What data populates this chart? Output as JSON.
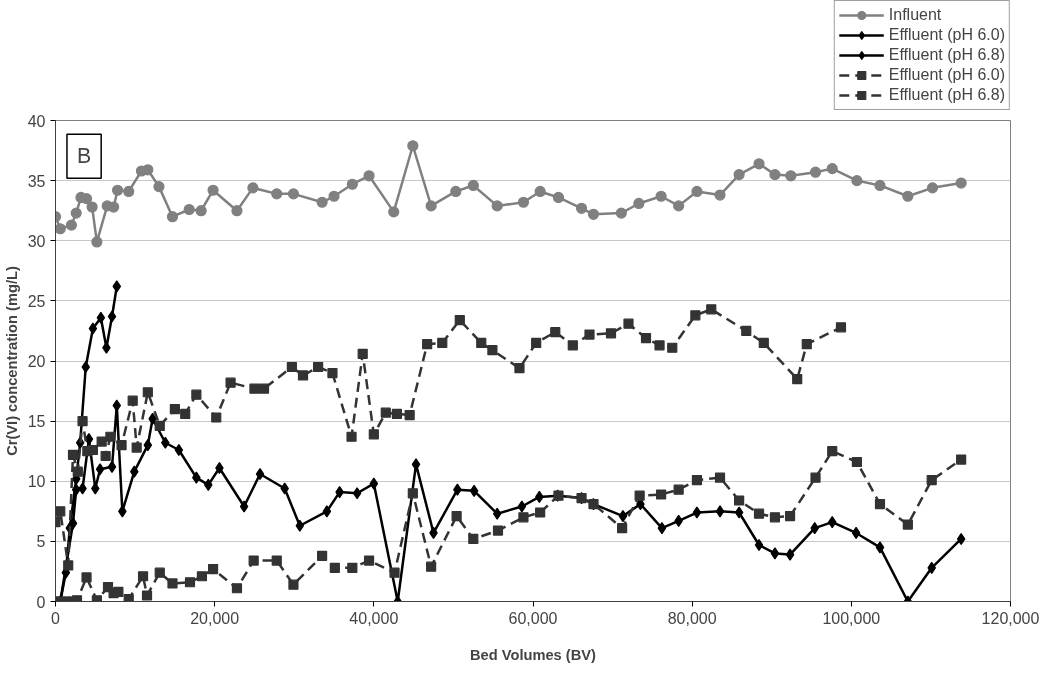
{
  "chart_data": {
    "type": "line",
    "xlabel": "Bed Volumes (BV)",
    "ylabel": "Cr(VI) concentration (mg/L)",
    "annotations": [
      "B"
    ],
    "xlim": [
      0,
      120000
    ],
    "ylim": [
      0,
      40
    ],
    "xticks": [
      {
        "value": 0,
        "label": "0"
      },
      {
        "value": 20000,
        "label": "20,000"
      },
      {
        "value": 40000,
        "label": "40,000"
      },
      {
        "value": 60000,
        "label": "60,000"
      },
      {
        "value": 80000,
        "label": "80,000"
      },
      {
        "value": 100000,
        "label": "100,000"
      },
      {
        "value": 120000,
        "label": "120,000"
      }
    ],
    "yticks": [
      0,
      5,
      10,
      15,
      20,
      25,
      30,
      35,
      40
    ],
    "grid": "y",
    "legend": "top right",
    "series": [
      {
        "name": "Influent",
        "color": "#808080",
        "marker": "circle",
        "line_style": "solid",
        "x": [
          0,
          600,
          2000,
          2600,
          3200,
          3900,
          4600,
          5200,
          6500,
          7300,
          7800,
          9200,
          10800,
          11600,
          13000,
          14700,
          16800,
          18300,
          19800,
          22800,
          24800,
          27800,
          29900,
          33500,
          35000,
          37300,
          39400,
          42500,
          44900,
          47200,
          50300,
          52500,
          55500,
          58800,
          60900,
          63200,
          66100,
          67600,
          71100,
          73300,
          76100,
          78300,
          80600,
          83500,
          85900,
          88400,
          90400,
          92400,
          95500,
          97600,
          100700,
          103600,
          107100,
          110200,
          113800
        ],
        "values": [
          32.0,
          31.0,
          31.3,
          32.3,
          33.6,
          33.5,
          32.8,
          29.9,
          32.9,
          32.8,
          34.2,
          34.1,
          35.8,
          35.9,
          34.5,
          32.0,
          32.6,
          32.5,
          34.2,
          32.5,
          34.4,
          33.9,
          33.9,
          33.2,
          33.7,
          34.7,
          35.4,
          32.4,
          37.9,
          32.9,
          34.1,
          34.6,
          32.9,
          33.2,
          34.1,
          33.6,
          32.7,
          32.2,
          32.3,
          33.1,
          33.7,
          32.9,
          34.1,
          33.8,
          35.5,
          36.4,
          35.5,
          35.4,
          35.7,
          36.0,
          35.0,
          34.6,
          33.7,
          34.4,
          34.8
        ]
      },
      {
        "name": "Effluent (pH 6.0)",
        "color": "#000000",
        "marker": "diamond",
        "line_style": "solid",
        "x": [
          0,
          600,
          2200,
          2600,
          3400,
          4200,
          5000,
          5600,
          7100,
          7700,
          8400,
          9900,
          11600,
          12200,
          13800,
          15500,
          17700,
          19200,
          20600,
          23700,
          25700,
          28800,
          30700,
          34100,
          35700,
          37900,
          40000,
          43000,
          45300,
          47500,
          50500,
          52600,
          55500,
          58600,
          60800,
          63100,
          66100,
          67600,
          71300,
          73500,
          76200,
          78300,
          80600,
          83500,
          85900,
          88400,
          90400,
          92300,
          95400,
          97600,
          100600,
          103600,
          107100,
          110100,
          113800
        ],
        "values": [
          0,
          0,
          6.5,
          9.3,
          9.4,
          13.5,
          9.4,
          11.0,
          11.2,
          16.3,
          7.5,
          10.8,
          13.0,
          15.2,
          13.2,
          12.6,
          10.3,
          9.7,
          11.1,
          7.9,
          10.6,
          9.4,
          6.3,
          7.5,
          9.1,
          9.0,
          9.8,
          0,
          11.4,
          5.7,
          9.3,
          9.2,
          7.3,
          7.9,
          8.7,
          8.8,
          8.6,
          8.1,
          7.1,
          8.1,
          6.1,
          6.7,
          7.4,
          7.5,
          7.4,
          4.7,
          4.0,
          3.9,
          6.1,
          6.6,
          5.7,
          4.5,
          0,
          2.8,
          5.2
        ]
      },
      {
        "name": "Effluent (pH 6.8)",
        "color": "#000000",
        "marker": "diamond",
        "line_style": "solid",
        "x": [
          600,
          1300,
          1800,
          2600,
          3100,
          3800,
          4700,
          5700,
          6400,
          7100,
          7700
        ],
        "values": [
          0,
          2.4,
          6.1,
          10.2,
          13.2,
          19.5,
          22.7,
          23.6,
          21.1,
          23.7,
          26.2
        ]
      },
      {
        "name": "Effluent (pH 6.0)",
        "color": "#333333",
        "marker": "square",
        "line_style": "dashed",
        "x": [
          0,
          700,
          1400,
          2000,
          2700,
          3900,
          5200,
          6600,
          7300,
          7900,
          9200,
          11000,
          11500,
          13100,
          14700,
          16900,
          18400,
          19800,
          22800,
          24900,
          27800,
          29900,
          33500,
          35100,
          37300,
          39400,
          42600,
          44900,
          47200,
          50400,
          52500,
          55600,
          58800,
          60900,
          63200,
          66100,
          67600,
          71200,
          73400,
          76100,
          78300,
          80600,
          83500,
          85900,
          88400,
          90400,
          92300,
          95500,
          97600,
          100700,
          103600,
          107100,
          110100,
          113800
        ],
        "values": [
          0,
          0,
          0,
          0,
          0.1,
          2.0,
          0.1,
          1.2,
          0.7,
          0.8,
          0.2,
          2.1,
          0.5,
          2.4,
          1.5,
          1.6,
          2.1,
          2.7,
          1.1,
          3.4,
          3.4,
          1.4,
          3.8,
          2.8,
          2.8,
          3.4,
          2.4,
          9.0,
          2.9,
          7.1,
          5.2,
          5.9,
          7.0,
          7.4,
          8.8,
          8.6,
          8.1,
          6.1,
          8.8,
          8.9,
          9.3,
          10.1,
          10.3,
          8.4,
          7.3,
          7.0,
          7.1,
          10.3,
          12.5,
          11.6,
          8.1,
          6.4,
          10.1,
          11.8
        ]
      },
      {
        "name": "Effluent (pH 6.8)",
        "color": "#333333",
        "marker": "square",
        "line_style": "dashed",
        "x": [
          0,
          600,
          1600,
          2200,
          2800,
          3400,
          4000,
          4700,
          5800,
          6300,
          6900,
          8300,
          9700,
          10200,
          11600,
          13100,
          15000,
          16300,
          17700,
          20200,
          22000,
          25000,
          26200,
          29700,
          31100,
          33000,
          34800,
          37200,
          38600,
          40000,
          41500,
          42900,
          44500,
          46700,
          48600,
          50800,
          53500,
          54900,
          58300,
          60400,
          62800,
          65000,
          67100,
          69800,
          72000,
          74200,
          75900,
          77500,
          80400,
          82400,
          86800,
          89000,
          93200,
          94400,
          98700
        ],
        "values": [
          6.6,
          7.5,
          3.0,
          12.2,
          10.8,
          15.0,
          12.5,
          12.6,
          13.3,
          12.1,
          13.7,
          13.0,
          16.7,
          12.8,
          17.4,
          14.6,
          16.0,
          15.6,
          17.2,
          15.3,
          18.2,
          17.7,
          17.7,
          19.5,
          18.8,
          19.5,
          19.0,
          13.7,
          20.6,
          13.9,
          15.7,
          15.6,
          15.5,
          21.4,
          21.5,
          23.4,
          21.5,
          20.9,
          19.4,
          21.5,
          22.4,
          21.3,
          22.2,
          22.3,
          23.1,
          21.9,
          21.3,
          21.1,
          23.8,
          24.3,
          22.5,
          21.5,
          18.5,
          21.4,
          22.8
        ]
      }
    ]
  }
}
